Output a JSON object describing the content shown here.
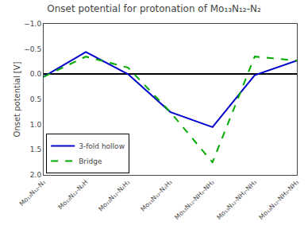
{
  "chart_data": {
    "type": "line",
    "title": "Onset potential for protonation of Mo₁₃N₁₂-N₂",
    "y_label": "Onset potential [V]",
    "categories": [
      "Mo₁₃N₁₂-N₂",
      "Mo₁₃N₁₂-N₂H",
      "Mo₁₃N₁₂-N₂H₂",
      "Mo₁₃N₁₂-N₂H₃",
      "Mo₁₃N₁₂-NH₂-NH₂",
      "Mo₁₃N₁₂-NH₂-NH₃",
      "Mo₁₃N₁₂-NH₃-NH₃"
    ],
    "series": [
      {
        "name": "3-fold hollow",
        "color": "#0000cc",
        "line_style": "solid",
        "values": [
          0.05,
          -0.44,
          0.0,
          0.75,
          1.05,
          0.02,
          -0.27
        ]
      },
      {
        "name": "Bridge",
        "color": "#00aa00",
        "line_style": "dashed",
        "values": [
          0.05,
          -0.35,
          -0.13,
          0.75,
          1.75,
          -0.35,
          -0.27
        ]
      }
    ],
    "ylim": [
      2.0,
      -1.0
    ],
    "yticks": [
      {
        "value": -1.0,
        "label": "−1.0"
      },
      {
        "value": -0.5,
        "label": "−0.5"
      },
      {
        "value": 0.0,
        "label": "0.0"
      },
      0.5,
      {
        "value": 1.0,
        "label": "1.0"
      },
      1.5,
      {
        "value": 2.0,
        "label": "2.0"
      }
    ],
    "grid": false,
    "legend": "lower left"
  }
}
